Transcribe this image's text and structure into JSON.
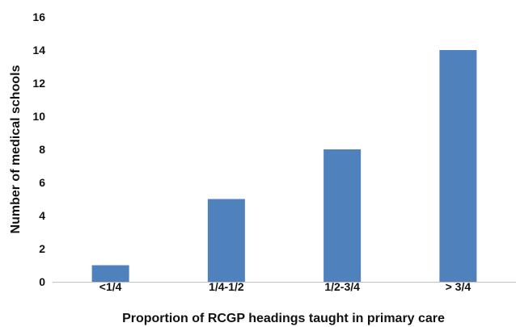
{
  "chart_data": {
    "type": "bar",
    "categories": [
      "<1/4",
      "1/4-1/2",
      "1/2-3/4",
      "> 3/4"
    ],
    "values": [
      1,
      5,
      8,
      14
    ],
    "title": "",
    "xlabel": "Proportion of RCGP headings taught in primary care",
    "ylabel": "Number of medical schools",
    "ylim": [
      0,
      16
    ],
    "yticks": [
      0,
      2,
      4,
      6,
      8,
      10,
      12,
      14,
      16
    ],
    "grid": false,
    "legend": "none",
    "bar_color": "#4f81bd",
    "axis_color": "#bfbfbf"
  }
}
